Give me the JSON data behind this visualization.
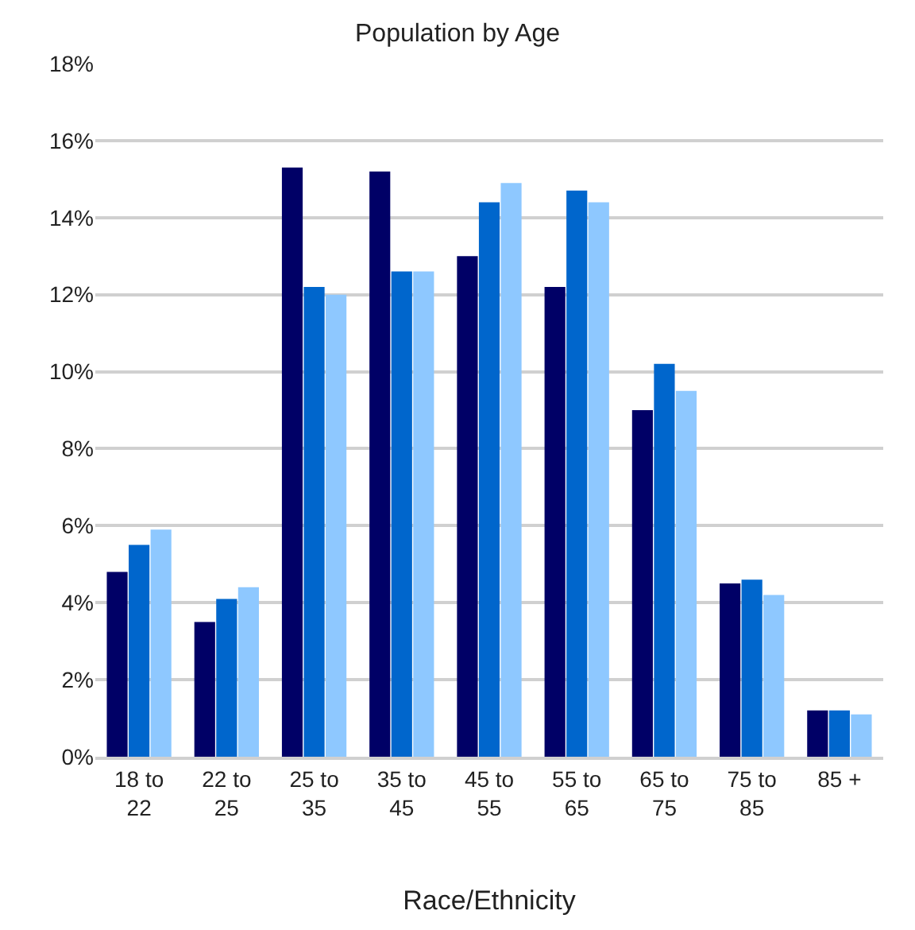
{
  "chart_data": {
    "type": "bar",
    "title": "Population by Age",
    "xlabel": "Race/Ethnicity",
    "categories": [
      "18 to 22",
      "22 to 25",
      "25 to 35",
      "35 to 45",
      "45 to 55",
      "55 to 65",
      "65 to 75",
      "75 to 85",
      "85 +"
    ],
    "series": [
      {
        "color": "#000066",
        "values": [
          4.8,
          3.5,
          15.3,
          15.2,
          13.0,
          12.2,
          9.0,
          4.5,
          1.2
        ]
      },
      {
        "color": "#0066cc",
        "values": [
          5.5,
          4.1,
          12.2,
          12.6,
          14.4,
          14.7,
          10.2,
          4.6,
          1.2
        ]
      },
      {
        "color": "#8ec8ff",
        "values": [
          5.9,
          4.4,
          12.0,
          12.6,
          14.9,
          14.4,
          9.5,
          4.2,
          1.1
        ]
      }
    ],
    "ylim": [
      0,
      18
    ],
    "yticks": [
      {
        "value": 0,
        "label": "0%"
      },
      {
        "value": 2,
        "label": "2%"
      },
      {
        "value": 4,
        "label": "4%"
      },
      {
        "value": 6,
        "label": "6%"
      },
      {
        "value": 8,
        "label": "8%"
      },
      {
        "value": 10,
        "label": "10%"
      },
      {
        "value": 12,
        "label": "12%"
      },
      {
        "value": 14,
        "label": "14%"
      },
      {
        "value": 16,
        "label": "16%"
      },
      {
        "value": 18,
        "label": "18%"
      }
    ],
    "grid": "y"
  }
}
